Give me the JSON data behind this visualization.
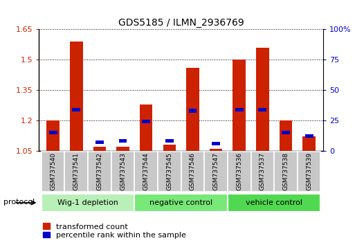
{
  "title": "GDS5185 / ILMN_2936769",
  "samples": [
    "GSM737540",
    "GSM737541",
    "GSM737542",
    "GSM737543",
    "GSM737544",
    "GSM737545",
    "GSM737546",
    "GSM737547",
    "GSM737536",
    "GSM737537",
    "GSM737538",
    "GSM737539"
  ],
  "red_values": [
    1.2,
    1.59,
    1.07,
    1.07,
    1.28,
    1.08,
    1.46,
    1.06,
    1.5,
    1.56,
    1.2,
    1.12
  ],
  "blue_pct": [
    15,
    34,
    7,
    8,
    24,
    8,
    33,
    6,
    34,
    34,
    15,
    12
  ],
  "ylim_left": [
    1.05,
    1.65
  ],
  "ylim_right": [
    0,
    100
  ],
  "yticks_left": [
    1.05,
    1.2,
    1.35,
    1.5,
    1.65
  ],
  "yticks_right": [
    0,
    25,
    50,
    75,
    100
  ],
  "groups": [
    {
      "label": "Wig-1 depletion",
      "start": 0,
      "end": 4,
      "color": "#b8f0b8"
    },
    {
      "label": "negative control",
      "start": 4,
      "end": 8,
      "color": "#78e878"
    },
    {
      "label": "vehicle control",
      "start": 8,
      "end": 12,
      "color": "#50d850"
    }
  ],
  "bar_width": 0.55,
  "blue_bar_width": 0.35,
  "red_color": "#cc2200",
  "blue_color": "#0000cc",
  "baseline": 1.05,
  "sample_bg_color": "#c8c8c8",
  "plot_bg_color": "#ffffff"
}
